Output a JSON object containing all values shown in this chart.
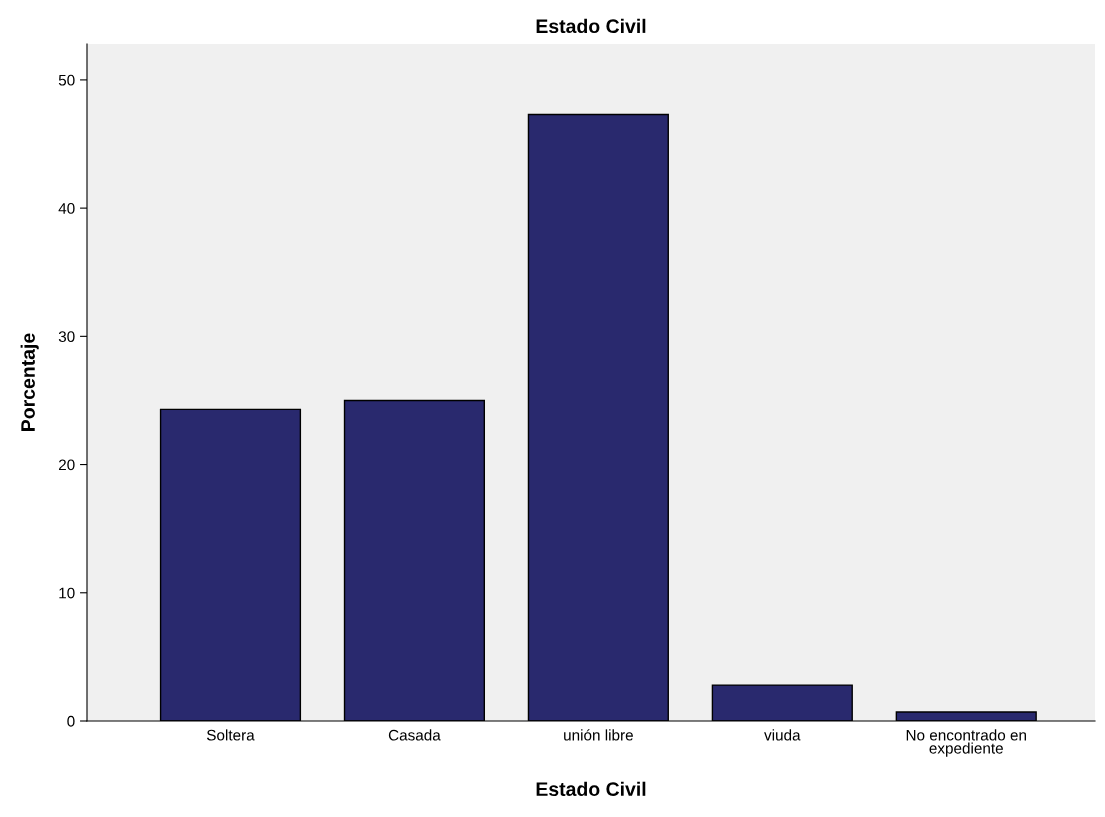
{
  "chart_data": {
    "type": "bar",
    "title": "Estado Civil",
    "xlabel": "Estado Civil",
    "ylabel": "Porcentaje",
    "categories": [
      "Soltera",
      "Casada",
      "unión libre",
      "viuda",
      "No encontrado en\nexpediente"
    ],
    "values": [
      24.3,
      25.0,
      47.3,
      2.8,
      0.7
    ],
    "color": "#29296e",
    "ylim": [
      0,
      52.8
    ],
    "yticks": [
      0,
      10,
      20,
      30,
      40,
      50
    ],
    "grid": false,
    "legend": false
  }
}
